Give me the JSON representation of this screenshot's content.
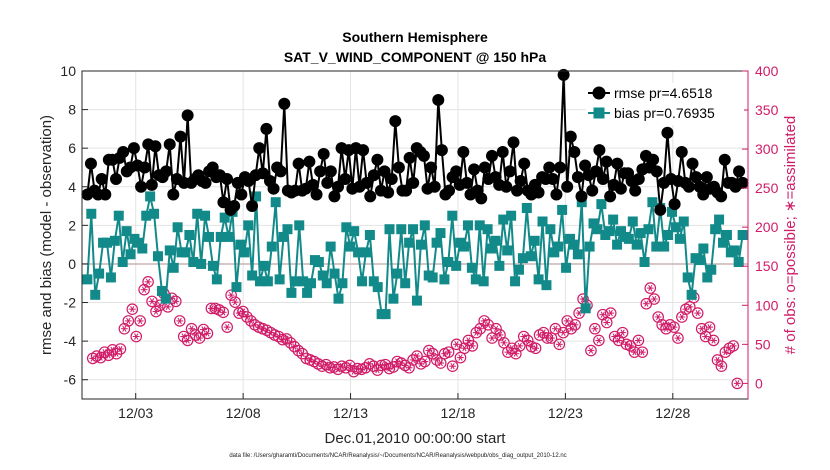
{
  "chart_data": {
    "type": "line",
    "title": "Southern Hemisphere",
    "subtitle": "SAT_V_WIND_COMPONENT @ 150 hPa",
    "xlabel": "Dec.01,2010 00:00:00 start",
    "ylabel_left": "rmse and bias (model - observation)",
    "ylabel_right": "# of obs: o=possible; ∗=assimilated",
    "footnote": "data file: /Users/gharamti/Documents/NCAR/Reanalysis/~/Documents/NCAR/Reanalysis/webpub/obs_diag_output_2010-12.nc",
    "x_range_days": [
      0.5,
      31.5
    ],
    "x_ticks": [
      {
        "day": 3,
        "label": "12/03"
      },
      {
        "day": 8,
        "label": "12/08"
      },
      {
        "day": 13,
        "label": "12/13"
      },
      {
        "day": 18,
        "label": "12/18"
      },
      {
        "day": 23,
        "label": "12/23"
      },
      {
        "day": 28,
        "label": "12/28"
      }
    ],
    "ylim_left": [
      -7,
      10
    ],
    "yticks_left": [
      -6,
      -4,
      -2,
      0,
      2,
      4,
      6,
      8,
      10
    ],
    "ylim_right": [
      -20,
      400
    ],
    "yticks_right": [
      0,
      50,
      100,
      150,
      200,
      250,
      300,
      350,
      400
    ],
    "grid": true,
    "legend": {
      "placement": "top-right"
    },
    "colors": {
      "rmse": "#000000",
      "bias": "#128a8a",
      "obs": "#d01c68",
      "zero_line": "#c8b4b4"
    },
    "series": [
      {
        "name": "rmse pr=4.6518",
        "axis": "left",
        "values": [
          3.6,
          5.2,
          3.8,
          3.6,
          4.4,
          3.6,
          5.4,
          5.4,
          4.4,
          5.5,
          5.8,
          4.8,
          5.0,
          6.0,
          5.1,
          4.0,
          5.0,
          6.2,
          4.1,
          6.1,
          4.6,
          4.5,
          4.8,
          6.2,
          3.6,
          4.4,
          6.6,
          4.2,
          7.7,
          4.2,
          4.4,
          4.6,
          4.3,
          4.2,
          4.8,
          5.0,
          4.5,
          4.6,
          3.2,
          4.4,
          2.8,
          3.0,
          4.2,
          3.6,
          4.5,
          4.3,
          3.0,
          4.6,
          6.0,
          4.7,
          7.0,
          4.3,
          3.9,
          5.0,
          4.8,
          8.3,
          3.8,
          3.7,
          3.8,
          5.2,
          3.8,
          3.9,
          5.3,
          4.1,
          3.6,
          4.8,
          5.7,
          4.2,
          4.8,
          3.5,
          4.0,
          6.0,
          4.4,
          5.9,
          3.9,
          6.0,
          4.0,
          5.9,
          4.2,
          3.5,
          4.6,
          5.4,
          3.8,
          4.8,
          3.7,
          4.4,
          7.4,
          5.0,
          3.8,
          3.8,
          5.5,
          4.2,
          6.0,
          5.8,
          5.6,
          3.9,
          5.0,
          4.0,
          8.5,
          5.9,
          3.6,
          3.8,
          4.5,
          4.8,
          4.1,
          5.8,
          4.2,
          3.6,
          4.9,
          3.8,
          3.4,
          5.0,
          4.4,
          5.6,
          4.5,
          4.1,
          5.8,
          4.0,
          4.8,
          6.3,
          3.8,
          4.3,
          5.2,
          3.8,
          3.6,
          4.1,
          3.7,
          4.5,
          4.4,
          5.0,
          4.4,
          3.6,
          5.0,
          9.8,
          4.0,
          6.6,
          5.8,
          4.5,
          3.5,
          5.1,
          4.6,
          3.8,
          4.8,
          5.9,
          4.4,
          5.3,
          3.5,
          4.1,
          5.2,
          3.9,
          4.7,
          4.7,
          4.3,
          3.8,
          4.4,
          4.9,
          5.6,
          5.0,
          5.4,
          4.8,
          2.8,
          4.2,
          6.8,
          4.4,
          3.1,
          4.3,
          5.8,
          4.2,
          4.0,
          5.2,
          4.5,
          4.0,
          3.6,
          4.5,
          3.9,
          4.0,
          3.7,
          3.5,
          5.4,
          4.2,
          4.2,
          4.0,
          4.8,
          4.2
        ]
      },
      {
        "name": "bias pr=0.76935",
        "axis": "left",
        "values": [
          -0.8,
          2.6,
          -1.6,
          -0.5,
          1.1,
          1.1,
          -0.7,
          1.2,
          2.5,
          0.1,
          1.7,
          0.5,
          1.3,
          1.1,
          0.8,
          2.5,
          3.5,
          2.6,
          0.4,
          -1.4,
          -1.8,
          0.7,
          -0.2,
          1.9,
          0.6,
          0.6,
          1.5,
          0.1,
          2.6,
          0.0,
          2.5,
          1.4,
          -0.1,
          -0.8,
          1.4,
          2.4,
          1.4,
          2.7,
          -1.2,
          1.0,
          0.6,
          2.0,
          -0.6,
          3.5,
          -0.9,
          -0.1,
          -0.9,
          0.9,
          3.2,
          -0.8,
          1.4,
          1.8,
          -1.5,
          -0.9,
          2.0,
          -0.9,
          -1.5,
          -1.0,
          0.2,
          0.1,
          -0.6,
          -1.0,
          0.9,
          -0.5,
          -1.8,
          -1.0,
          1.9,
          0.9,
          1.7,
          0.6,
          -0.9,
          0.6,
          1.5,
          -0.9,
          -1.2,
          -2.6,
          -2.6,
          1.8,
          -1.8,
          -0.5,
          1.8,
          -1.0,
          1.1,
          1.8,
          -1.9,
          1.0,
          2.0,
          -0.6,
          -0.7,
          1.1,
          1.6,
          -0.8,
          0.1,
          2.5,
          -0.1,
          1.1,
          0.9,
          2.0,
          -0.2,
          -0.8,
          2.0,
          -0.9,
          1.8,
          0.8,
          1.2,
          -0.1,
          2.3,
          0.7,
          2.5,
          -0.9,
          -0.3,
          0.3,
          2.9,
          0.4,
          1.2,
          -0.8,
          2.2,
          -1.1,
          1.8,
          0.6,
          0.9,
          2.8,
          -0.2,
          1.3,
          1.0,
          0.5,
          3.2,
          -2.3,
          0.9,
          2.1,
          1.8,
          3.1,
          1.5,
          1.7,
          2.3,
          1.0,
          1.7,
          1.4,
          1.3,
          2.2,
          1.0,
          1.6,
          0.1,
          1.8,
          3.2,
          0.9,
          2.9,
          0.9,
          1.5,
          2.7,
          1.9,
          1.3,
          2.2,
          -0.7,
          -1.6,
          0.3,
          0.2,
          0.8,
          -0.7,
          -0.3,
          1.8,
          2.3,
          1.1,
          1.5,
          0.6,
          0.7,
          0.1,
          1.5
        ],
        "marker_offset_start_day": 0.75
      },
      {
        "name": "obs",
        "axis": "right",
        "values": [
          32,
          35,
          33,
          40,
          36,
          43,
          38,
          44,
          70,
          80,
          95,
          60,
          80,
          120,
          130,
          105,
          92,
          100,
          115,
          98,
          109,
          105,
          80,
          60,
          55,
          70,
          62,
          58,
          69,
          64,
          96,
          96,
          94,
          91,
          72,
          113,
          104,
          90,
          92,
          85,
          80,
          75,
          72,
          70,
          68,
          65,
          62,
          60,
          56,
          57,
          52,
          47,
          42,
          38,
          32,
          30,
          28,
          25,
          22,
          24,
          20,
          21,
          18,
          22,
          20,
          23,
          15,
          19,
          18,
          20,
          25,
          22,
          17,
          23,
          24,
          19,
          21,
          28,
          26,
          23,
          20,
          30,
          35,
          25,
          28,
          42,
          38,
          30,
          26,
          38,
          40,
          22,
          50,
          33,
          45,
          55,
          48,
          65,
          70,
          80,
          75,
          58,
          70,
          62,
          52,
          40,
          45,
          38,
          48,
          60,
          55,
          47,
          45,
          62,
          65,
          58,
          58,
          70,
          50,
          65,
          80,
          70,
          75,
          90,
          108,
          100,
          42,
          70,
          55,
          88,
          78,
          90,
          60,
          55,
          65,
          50,
          48,
          40,
          55,
          40,
          102,
          122,
          108,
          85,
          75,
          70,
          75,
          72,
          58,
          85,
          95,
          98,
          110,
          90,
          70,
          60,
          72,
          55,
          30,
          22,
          40,
          45,
          48,
          0
        ]
      }
    ]
  }
}
